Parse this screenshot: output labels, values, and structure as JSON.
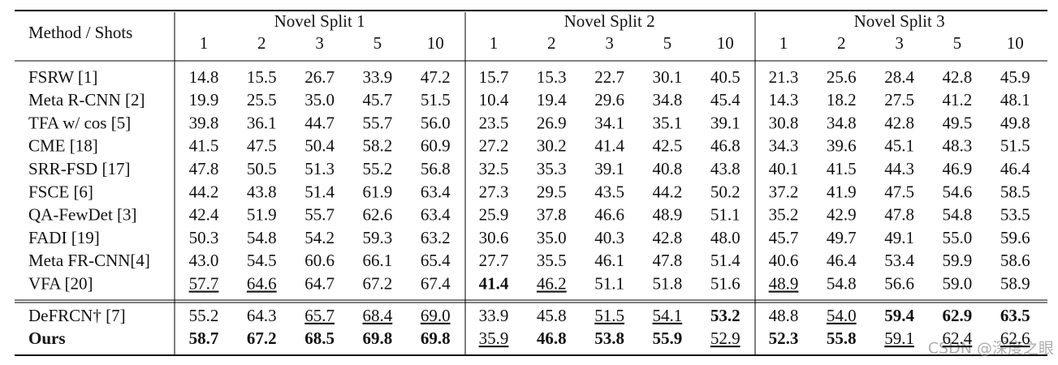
{
  "table": {
    "header": {
      "method": "Method / Shots",
      "splits": [
        {
          "name": "Novel Split 1",
          "shots": [
            "1",
            "2",
            "3",
            "5",
            "10"
          ]
        },
        {
          "name": "Novel Split 2",
          "shots": [
            "1",
            "2",
            "3",
            "5",
            "10"
          ]
        },
        {
          "name": "Novel Split 3",
          "shots": [
            "1",
            "2",
            "3",
            "5",
            "10"
          ]
        }
      ]
    },
    "groups": [
      [
        {
          "cells": [
            "FSRW [1]",
            "14.8",
            "15.5",
            "26.7",
            "33.9",
            "47.2",
            "15.7",
            "15.3",
            "22.7",
            "30.1",
            "40.5",
            "21.3",
            "25.6",
            "28.4",
            "42.8",
            "45.9"
          ]
        },
        {
          "cells": [
            "Meta R-CNN [2]",
            "19.9",
            "25.5",
            "35.0",
            "45.7",
            "51.5",
            "10.4",
            "19.4",
            "29.6",
            "34.8",
            "45.4",
            "14.3",
            "18.2",
            "27.5",
            "41.2",
            "48.1"
          ]
        },
        {
          "cells": [
            "TFA w/ cos [5]",
            "39.8",
            "36.1",
            "44.7",
            "55.7",
            "56.0",
            "23.5",
            "26.9",
            "34.1",
            "35.1",
            "39.1",
            "30.8",
            "34.8",
            "42.8",
            "49.5",
            "49.8"
          ]
        },
        {
          "cells": [
            "CME [18]",
            "41.5",
            "47.5",
            "50.4",
            "58.2",
            "60.9",
            "27.2",
            "30.2",
            "41.4",
            "42.5",
            "46.8",
            "34.3",
            "39.6",
            "45.1",
            "48.3",
            "51.5"
          ]
        },
        {
          "cells": [
            "SRR-FSD [17]",
            "47.8",
            "50.5",
            "51.3",
            "55.2",
            "56.8",
            "32.5",
            "35.3",
            "39.1",
            "40.8",
            "43.8",
            "40.1",
            "41.5",
            "44.3",
            "46.9",
            "46.4"
          ]
        },
        {
          "cells": [
            "FSCE [6]",
            "44.2",
            "43.8",
            "51.4",
            "61.9",
            "63.4",
            "27.3",
            "29.5",
            "43.5",
            "44.2",
            "50.2",
            "37.2",
            "41.9",
            "47.5",
            "54.6",
            "58.5"
          ]
        },
        {
          "cells": [
            "QA-FewDet [3]",
            "42.4",
            "51.9",
            "55.7",
            "62.6",
            "63.4",
            "25.9",
            "37.8",
            "46.6",
            "48.9",
            "51.1",
            "35.2",
            "42.9",
            "47.8",
            "54.8",
            "53.5"
          ]
        },
        {
          "cells": [
            "FADI [19]",
            "50.3",
            "54.8",
            "54.2",
            "59.3",
            "63.2",
            "30.6",
            "35.0",
            "40.3",
            "42.8",
            "48.0",
            "45.7",
            "49.7",
            "49.1",
            "55.0",
            "59.6"
          ]
        },
        {
          "cells": [
            "Meta FR-CNN[4]",
            "43.0",
            "54.5",
            "60.6",
            "66.1",
            "65.4",
            "27.7",
            "35.5",
            "46.1",
            "47.8",
            "51.4",
            "40.6",
            "46.4",
            "53.4",
            "59.9",
            "58.6"
          ]
        },
        {
          "cells": [
            "VFA [20]",
            "57.7",
            "64.6",
            "64.7",
            "67.2",
            "67.4",
            "41.4",
            "46.2",
            "51.1",
            "51.8",
            "51.6",
            "48.9",
            "54.8",
            "56.6",
            "59.0",
            "58.9"
          ],
          "bold": [
            6
          ],
          "underline": [
            1,
            2,
            7,
            11
          ]
        }
      ],
      [
        {
          "cells": [
            "DeFRCN† [7]",
            "55.2",
            "64.3",
            "65.7",
            "68.4",
            "69.0",
            "33.9",
            "45.8",
            "51.5",
            "54.1",
            "53.2",
            "48.8",
            "54.0",
            "59.4",
            "62.9",
            "63.5"
          ],
          "bold": [
            10,
            13,
            14,
            15
          ],
          "underline": [
            3,
            4,
            5,
            8,
            9,
            12
          ]
        },
        {
          "cells": [
            "Ours",
            "58.7",
            "67.2",
            "68.5",
            "69.8",
            "69.8",
            "35.9",
            "46.8",
            "53.8",
            "55.9",
            "52.9",
            "52.3",
            "55.8",
            "59.1",
            "62.4",
            "62.6"
          ],
          "bold": [
            0,
            1,
            2,
            3,
            4,
            5,
            7,
            8,
            9,
            11,
            12
          ],
          "underline": [
            6,
            10,
            13,
            14,
            15
          ]
        }
      ]
    ],
    "watermark": "CSDN @深度之眼"
  }
}
